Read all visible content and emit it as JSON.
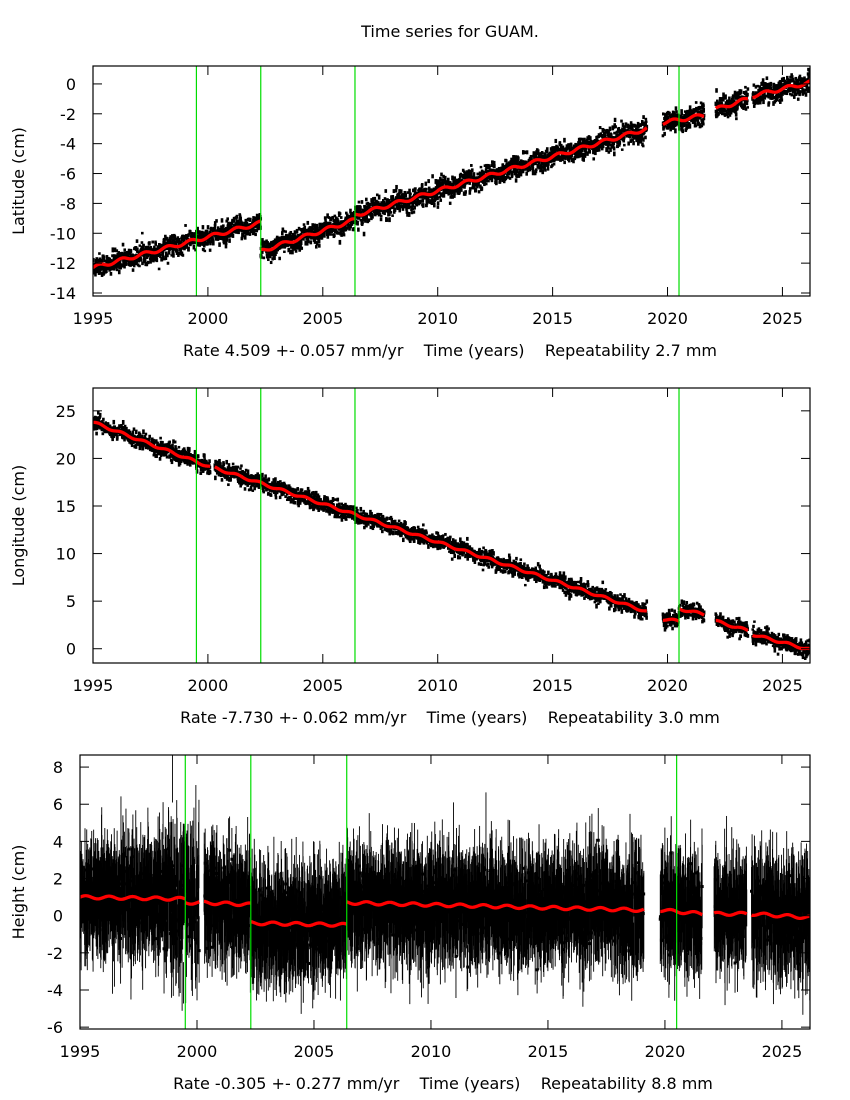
{
  "chart_data": {
    "title": "Time series for GUAM.",
    "type": "scatter",
    "colors": {
      "points": "#000000",
      "model": "#ff0000",
      "breaks": "#00dd00",
      "frame": "#000000"
    },
    "break_epochs": [
      1999.5,
      2002.3,
      2006.4,
      2020.5
    ],
    "panels": [
      {
        "id": "latitude",
        "ylabel": "Latitude (cm)",
        "xlabel": "Rate 4.509 +- 0.057 mm/yr    Time (years)    Repeatability 2.7 mm",
        "xlim": [
          1995,
          2026.2
        ],
        "ylim": [
          -14.2,
          1.2
        ],
        "xticks": [
          1995,
          2000,
          2005,
          2010,
          2015,
          2020,
          2025
        ],
        "xtick_labels": [
          "1995",
          "2000",
          "2005",
          "2010",
          "2015",
          "2020",
          "2025"
        ],
        "yticks": [
          0,
          -2,
          -4,
          -6,
          -8,
          -10,
          -12,
          -14
        ],
        "ytick_labels": [
          "0",
          "-2",
          "-4",
          "-6",
          "-8",
          "-10",
          "-12",
          "-14"
        ],
        "noise": 0.35,
        "errorbars": false,
        "segments": [
          {
            "x": [
              1995.0,
              2002.3
            ],
            "y": [
              -12.3,
              -9.3
            ]
          },
          {
            "x": [
              2002.3,
              2006.4
            ],
            "y": [
              -11.2,
              -9.1
            ]
          },
          {
            "x": [
              2006.4,
              2019.1
            ],
            "y": [
              -8.8,
              -3.0
            ]
          },
          {
            "x": [
              2019.8,
              2021.6
            ],
            "y": [
              -2.6,
              -2.1
            ]
          },
          {
            "x": [
              2022.1,
              2023.5
            ],
            "y": [
              -1.7,
              -1.0
            ]
          },
          {
            "x": [
              2023.7,
              2026.2
            ],
            "y": [
              -0.8,
              0.1
            ]
          }
        ]
      },
      {
        "id": "longitude",
        "ylabel": "Longitude (cm)",
        "xlabel": "Rate -7.730 +- 0.062 mm/yr    Time (years)    Repeatability 3.0 mm",
        "xlim": [
          1995,
          2026.2
        ],
        "ylim": [
          -1.5,
          27.4
        ],
        "xticks": [
          1995,
          2000,
          2005,
          2010,
          2015,
          2020,
          2025
        ],
        "xtick_labels": [
          "1995",
          "2000",
          "2005",
          "2010",
          "2015",
          "2020",
          "2025"
        ],
        "yticks": [
          25,
          20,
          15,
          10,
          5,
          0
        ],
        "ytick_labels": [
          "25",
          "20",
          "15",
          "10",
          "5",
          "0"
        ],
        "noise": 0.4,
        "errorbars": false,
        "segments": [
          {
            "x": [
              1995.0,
              2000.1
            ],
            "y": [
              23.8,
              19.1
            ]
          },
          {
            "x": [
              2000.3,
              2019.1
            ],
            "y": [
              19.0,
              3.9
            ]
          },
          {
            "x": [
              2019.8,
              2020.5
            ],
            "y": [
              3.1,
              2.9
            ]
          },
          {
            "x": [
              2020.5,
              2021.6
            ],
            "y": [
              4.2,
              3.6
            ]
          },
          {
            "x": [
              2022.1,
              2023.5
            ],
            "y": [
              2.9,
              1.9
            ]
          },
          {
            "x": [
              2023.7,
              2026.2
            ],
            "y": [
              1.5,
              -0.1
            ]
          }
        ]
      },
      {
        "id": "height",
        "ylabel": "Height (cm)",
        "xlabel": "Rate -0.305 +- 0.277 mm/yr    Time (years)    Repeatability 8.8 mm",
        "xlim": [
          1995,
          2026.2
        ],
        "ylim": [
          -6.1,
          8.65
        ],
        "xticks": [
          1995,
          2000,
          2005,
          2010,
          2015,
          2020,
          2025
        ],
        "xtick_labels": [
          "1995",
          "2000",
          "2005",
          "2010",
          "2015",
          "2020",
          "2025"
        ],
        "yticks": [
          8,
          6,
          4,
          2,
          0,
          -2,
          -4,
          -6
        ],
        "ytick_labels": [
          "8",
          "6",
          "4",
          "2",
          "0",
          "-2",
          "-4",
          "-6"
        ],
        "noise": 1.1,
        "errorbars": true,
        "segments": [
          {
            "x": [
              1995.0,
              1999.5
            ],
            "y": [
              1.0,
              0.9
            ]
          },
          {
            "x": [
              1999.5,
              2000.1
            ],
            "y": [
              0.7,
              0.7
            ]
          },
          {
            "x": [
              2000.3,
              2002.3
            ],
            "y": [
              0.7,
              0.6
            ]
          },
          {
            "x": [
              2002.3,
              2006.4
            ],
            "y": [
              -0.4,
              -0.5
            ]
          },
          {
            "x": [
              2006.4,
              2019.1
            ],
            "y": [
              0.7,
              0.3
            ]
          },
          {
            "x": [
              2019.8,
              2021.6
            ],
            "y": [
              0.3,
              0.1
            ]
          },
          {
            "x": [
              2022.1,
              2023.5
            ],
            "y": [
              0.1,
              0.1
            ]
          },
          {
            "x": [
              2023.7,
              2026.2
            ],
            "y": [
              0.1,
              -0.1
            ]
          }
        ]
      }
    ]
  }
}
